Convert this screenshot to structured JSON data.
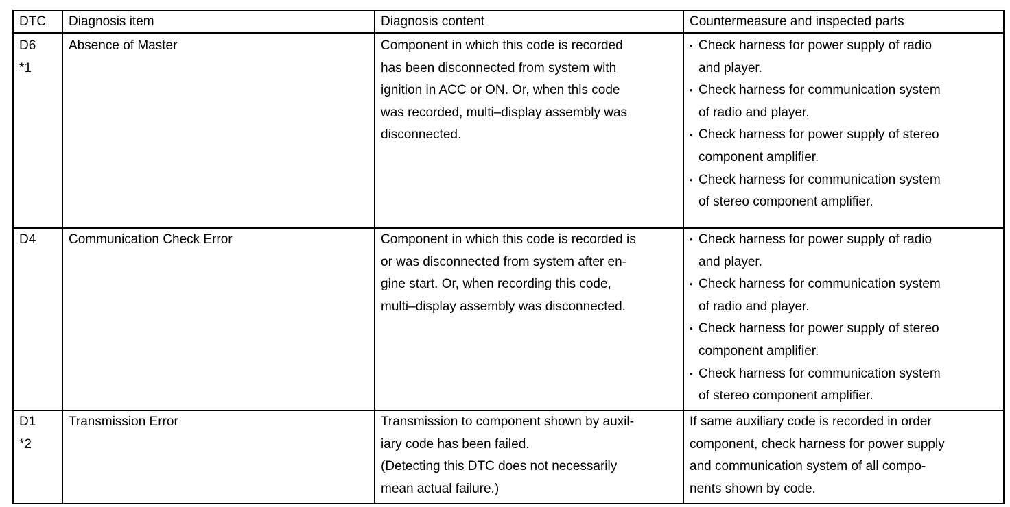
{
  "header": {
    "dtc": "DTC",
    "item": "Diagnosis item",
    "content": "Diagnosis content",
    "countermeasure": "Countermeasure and inspected parts"
  },
  "rows": [
    {
      "dtc": [
        "D6",
        "*1"
      ],
      "item": "Absence of Master",
      "content": [
        "Component in which this code is recorded",
        "has been disconnected from system with",
        "ignition in ACC or ON. Or, when this code",
        "was recorded, multi–display assembly was",
        "disconnected."
      ],
      "bullets": [
        [
          "Check harness for power supply of radio",
          "and player."
        ],
        [
          "Check harness for communication system",
          "of radio and player."
        ],
        [
          "Check harness for power supply of stereo",
          "component amplifier."
        ],
        [
          "Check harness for communication system",
          "of stereo component amplifier."
        ]
      ]
    },
    {
      "dtc": [
        "D4"
      ],
      "item": "Communication Check Error",
      "content": [
        "Component in which this code is recorded is",
        "or was disconnected from system after en-",
        "gine start. Or, when recording this code,",
        "multi–display assembly was disconnected."
      ],
      "bullets": [
        [
          "Check harness for power supply of radio",
          "and player."
        ],
        [
          "Check harness for communication system",
          "of radio and player."
        ],
        [
          "Check harness for power supply of stereo",
          "component amplifier."
        ],
        [
          "Check harness for communication system",
          "of stereo component amplifier."
        ]
      ]
    },
    {
      "dtc": [
        "D1",
        "*2"
      ],
      "item": "Transmission Error",
      "content": [
        "Transmission to component shown by auxil-",
        "iary code has been failed.",
        "(Detecting this DTC does not necessarily",
        "mean actual failure.)"
      ],
      "plain": [
        "If same auxiliary code is recorded in order",
        "component, check harness for power supply",
        "and communication system of all compo-",
        "nents shown by code."
      ]
    }
  ],
  "bullet_symbol": "•"
}
